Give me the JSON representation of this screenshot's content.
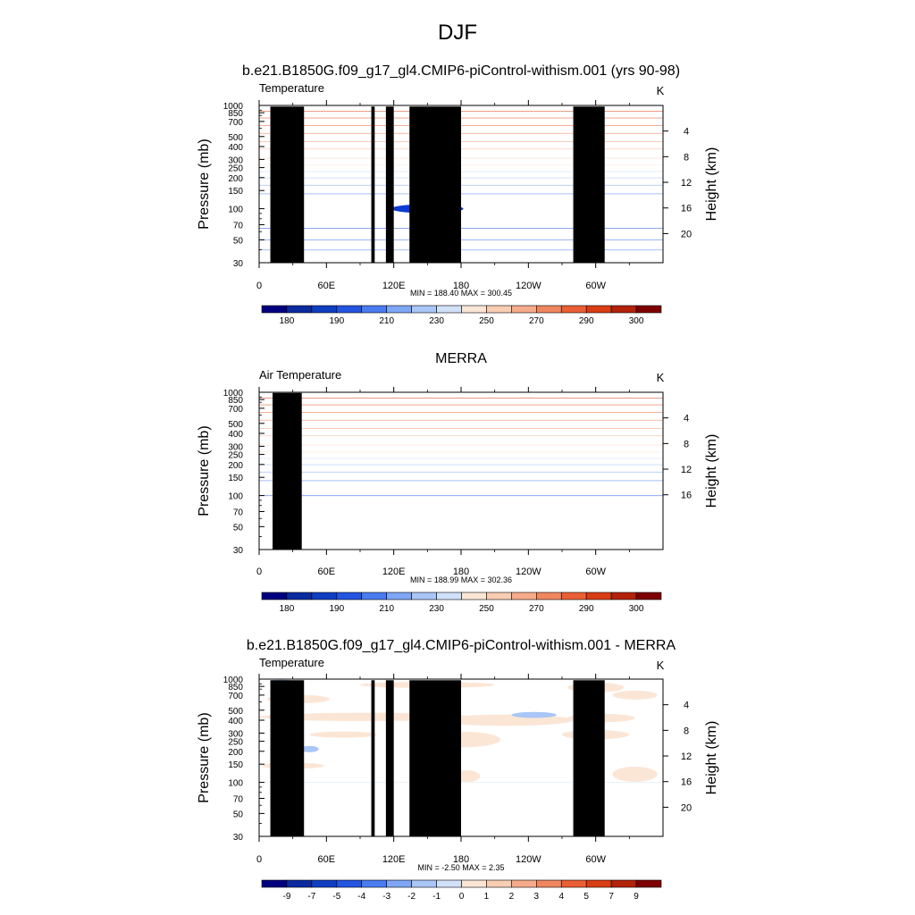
{
  "page": {
    "title": "DJF"
  },
  "panels": [
    {
      "title": "b.e21.B1850G.f09_g17_gl4.CMIP6-piControl-withism.001 (yrs 90-98)",
      "left_label": "Temperature",
      "right_label": "K",
      "ylabel_left": "Pressure (mb)",
      "ylabel_right": "Height (km)",
      "stats": "MIN = 188.40  MAX = 300.45",
      "bands": [
        {
          "p_top": 30,
          "p_bot": 40,
          "color": "#6ea2f5"
        },
        {
          "p_top": 40,
          "p_bot": 50,
          "color": "#4d82f0"
        },
        {
          "p_top": 50,
          "p_bot": 65,
          "color": "#3a6eec"
        },
        {
          "p_top": 65,
          "p_bot": 140,
          "color": "#1a50e0"
        },
        {
          "p_top": 140,
          "p_bot": 170,
          "color": "#4d82f0"
        },
        {
          "p_top": 170,
          "p_bot": 200,
          "color": "#7aa8f3"
        },
        {
          "p_top": 200,
          "p_bot": 230,
          "color": "#a3c4f5"
        },
        {
          "p_top": 230,
          "p_bot": 265,
          "color": "#c9dcf7"
        },
        {
          "p_top": 265,
          "p_bot": 310,
          "color": "#fbe5d6"
        },
        {
          "p_top": 310,
          "p_bot": 380,
          "color": "#fbd1b9"
        },
        {
          "p_top": 380,
          "p_bot": 450,
          "color": "#f9b697"
        },
        {
          "p_top": 450,
          "p_bot": 540,
          "color": "#f69a73"
        },
        {
          "p_top": 540,
          "p_bot": 640,
          "color": "#f37c4f"
        },
        {
          "p_top": 640,
          "p_bot": 760,
          "color": "#ee5f2d"
        },
        {
          "p_top": 760,
          "p_bot": 880,
          "color": "#e4471a"
        },
        {
          "p_top": 880,
          "p_bot": 1000,
          "color": "#d63b10"
        }
      ],
      "features": [
        {
          "type": "ellipse",
          "lon": 150,
          "p": 100,
          "rx_lon": 32,
          "p_half": 10,
          "color": "#0b3ad4"
        }
      ],
      "topo": [
        {
          "lon0": 10,
          "lon1": 40,
          "p_top": 975
        },
        {
          "lon0": 28,
          "lon1": 36,
          "p_top": 930
        },
        {
          "lon0": 100,
          "lon1": 103,
          "p_top": 975
        },
        {
          "lon0": 113,
          "lon1": 120,
          "p_top": 975
        },
        {
          "lon0": 134,
          "lon1": 180,
          "p_top": 975
        },
        {
          "lon0": 280,
          "lon1": 308,
          "p_top": 975
        }
      ],
      "mask": null,
      "colorbar": {
        "colors": [
          "#00007f",
          "#0a2a9e",
          "#0f3ec0",
          "#2255e0",
          "#4a7cf0",
          "#7ea6f5",
          "#a9c6f7",
          "#d0e1f8",
          "#fbe6d6",
          "#f9cdb2",
          "#f6ab8a",
          "#f08660",
          "#ea5f34",
          "#d93d13",
          "#b3220a",
          "#7f0000"
        ],
        "labels": [
          "180",
          "190",
          "210",
          "230",
          "250",
          "270",
          "290",
          "300"
        ]
      }
    },
    {
      "title": "MERRA",
      "left_label": "Air Temperature",
      "right_label": "K",
      "ylabel_left": "Pressure (mb)",
      "ylabel_right": "Height (km)",
      "stats": "MIN = 188.99  MAX = 302.36",
      "bands": [
        {
          "p_top": 30,
          "p_bot": 100,
          "color": "#ffffff"
        },
        {
          "p_top": 100,
          "p_bot": 140,
          "color": "#1a50e0"
        },
        {
          "p_top": 140,
          "p_bot": 170,
          "color": "#4d82f0"
        },
        {
          "p_top": 170,
          "p_bot": 200,
          "color": "#7aa8f3"
        },
        {
          "p_top": 200,
          "p_bot": 230,
          "color": "#a3c4f5"
        },
        {
          "p_top": 230,
          "p_bot": 265,
          "color": "#c9dcf7"
        },
        {
          "p_top": 265,
          "p_bot": 310,
          "color": "#fbe5d6"
        },
        {
          "p_top": 310,
          "p_bot": 380,
          "color": "#fbd1b9"
        },
        {
          "p_top": 380,
          "p_bot": 450,
          "color": "#f9b697"
        },
        {
          "p_top": 450,
          "p_bot": 540,
          "color": "#f69a73"
        },
        {
          "p_top": 540,
          "p_bot": 640,
          "color": "#f37c4f"
        },
        {
          "p_top": 640,
          "p_bot": 760,
          "color": "#ee5f2d"
        },
        {
          "p_top": 760,
          "p_bot": 880,
          "color": "#e4471a"
        },
        {
          "p_top": 880,
          "p_bot": 1000,
          "color": "#cf3510"
        }
      ],
      "features": [],
      "topo": [
        {
          "lon0": 12,
          "lon1": 38,
          "p_top": 985
        },
        {
          "lon0": 28,
          "lon1": 35,
          "p_top": 960
        }
      ],
      "mask": null,
      "colorbar": {
        "colors": [
          "#00007f",
          "#0a2a9e",
          "#0f3ec0",
          "#2255e0",
          "#4a7cf0",
          "#7ea6f5",
          "#a9c6f7",
          "#d0e1f8",
          "#fbe6d6",
          "#f9cdb2",
          "#f6ab8a",
          "#f08660",
          "#ea5f34",
          "#d93d13",
          "#b3220a",
          "#7f0000"
        ],
        "labels": [
          "180",
          "190",
          "210",
          "230",
          "250",
          "270",
          "290",
          "300"
        ]
      }
    },
    {
      "title": "b.e21.B1850G.f09_g17_gl4.CMIP6-piControl-withism.001 - MERRA",
      "left_label": "Temperature",
      "right_label": "K",
      "ylabel_left": "Pressure (mb)",
      "ylabel_right": "Height (km)",
      "stats": "MIN =  -2.50  MAX =   2.35",
      "bands": [
        {
          "p_top": 100,
          "p_bot": 1000,
          "color": "#d0e1f8"
        }
      ],
      "features": [
        {
          "type": "ellipse",
          "lon": 185,
          "p": 115,
          "rx_lon": 12,
          "p_half": 15,
          "color": "#fbe6d6"
        },
        {
          "type": "ellipse",
          "lon": 335,
          "p": 120,
          "rx_lon": 20,
          "p_half": 20,
          "color": "#fbe6d6"
        },
        {
          "type": "ellipse",
          "lon": 30,
          "p": 145,
          "rx_lon": 28,
          "p_half": 10,
          "color": "#fbe6d6"
        },
        {
          "type": "ellipse",
          "lon": 45,
          "p": 210,
          "rx_lon": 8,
          "p_half": 15,
          "color": "#a9c6f7"
        },
        {
          "type": "ellipse",
          "lon": 75,
          "p": 290,
          "rx_lon": 30,
          "p_half": 20,
          "color": "#fbe6d6"
        },
        {
          "type": "ellipse",
          "lon": 180,
          "p": 260,
          "rx_lon": 35,
          "p_half": 45,
          "color": "#fbe6d6"
        },
        {
          "type": "ellipse",
          "lon": 300,
          "p": 290,
          "rx_lon": 30,
          "p_half": 30,
          "color": "#fbe6d6"
        },
        {
          "type": "ellipse",
          "lon": 95,
          "p": 430,
          "rx_lon": 95,
          "p_half": 40,
          "color": "#fbe6d6"
        },
        {
          "type": "ellipse",
          "lon": 220,
          "p": 400,
          "rx_lon": 60,
          "p_half": 50,
          "color": "#fbe6d6"
        },
        {
          "type": "ellipse",
          "lon": 305,
          "p": 420,
          "rx_lon": 30,
          "p_half": 40,
          "color": "#fbe6d6"
        },
        {
          "type": "ellipse",
          "lon": 245,
          "p": 450,
          "rx_lon": 20,
          "p_half": 30,
          "color": "#a9c6f7"
        },
        {
          "type": "ellipse",
          "lon": 35,
          "p": 640,
          "rx_lon": 28,
          "p_half": 60,
          "color": "#fbe6d6"
        },
        {
          "type": "ellipse",
          "lon": 150,
          "p": 880,
          "rx_lon": 60,
          "p_half": 60,
          "color": "#fbe6d6"
        },
        {
          "type": "ellipse",
          "lon": 300,
          "p": 830,
          "rx_lon": 25,
          "p_half": 90,
          "color": "#fbe6d6"
        },
        {
          "type": "ellipse",
          "lon": 335,
          "p": 700,
          "rx_lon": 20,
          "p_half": 70,
          "color": "#fbe6d6"
        },
        {
          "type": "ellipse",
          "lon": 20,
          "p": 960,
          "rx_lon": 10,
          "p_half": 25,
          "color": "#a9c6f7"
        }
      ],
      "topo": [
        {
          "lon0": 10,
          "lon1": 40,
          "p_top": 975
        },
        {
          "lon0": 28,
          "lon1": 36,
          "p_top": 930
        },
        {
          "lon0": 100,
          "lon1": 103,
          "p_top": 975
        },
        {
          "lon0": 113,
          "lon1": 120,
          "p_top": 975
        },
        {
          "lon0": 134,
          "lon1": 180,
          "p_top": 975
        },
        {
          "lon0": 280,
          "lon1": 308,
          "p_top": 975
        }
      ],
      "mask": {
        "p_top": 30,
        "p_bot": 100,
        "color": "#000000"
      },
      "colorbar": {
        "colors": [
          "#00007f",
          "#0a2a9e",
          "#0f3ec0",
          "#2255e0",
          "#4a7cf0",
          "#7ea6f5",
          "#a9c6f7",
          "#d0e1f8",
          "#fbe6d6",
          "#f9cdb2",
          "#f6ab8a",
          "#f08660",
          "#ea5f34",
          "#d93d13",
          "#b3220a",
          "#7f0000"
        ],
        "labels": [
          "-9",
          "-7",
          "-5",
          "-4",
          "-3",
          "-2",
          "-1",
          "0",
          "1",
          "2",
          "3",
          "4",
          "5",
          "7",
          "9"
        ]
      }
    }
  ],
  "chart_data": [
    {
      "type": "heatmap",
      "title": "b.e21.B1850G.f09_g17_gl4.CMIP6-piControl-withism.001 (yrs 90-98)",
      "variable": "Temperature",
      "units": "K",
      "xlabel": "",
      "ylabel": "Pressure (mb)",
      "ylabel_right": "Height (km)",
      "x_ticks": [
        "0",
        "60E",
        "120E",
        "180",
        "120W",
        "60W"
      ],
      "y_ticks": [
        30,
        50,
        70,
        100,
        150,
        200,
        250,
        300,
        400,
        500,
        700,
        850,
        1000
      ],
      "y_right_ticks": [
        4,
        8,
        12,
        16,
        20
      ],
      "xlim": [
        0,
        360
      ],
      "ylim": [
        1000,
        30
      ],
      "y_scale": "log",
      "min": 188.4,
      "max": 300.45,
      "colorbar_labels": [
        180,
        190,
        210,
        230,
        250,
        270,
        290,
        300
      ]
    },
    {
      "type": "heatmap",
      "title": "MERRA",
      "variable": "Air Temperature",
      "units": "K",
      "xlabel": "",
      "ylabel": "Pressure (mb)",
      "ylabel_right": "Height (km)",
      "x_ticks": [
        "0",
        "60E",
        "120E",
        "180",
        "120W",
        "60W"
      ],
      "y_ticks": [
        30,
        50,
        70,
        100,
        150,
        200,
        250,
        300,
        400,
        500,
        700,
        850,
        1000
      ],
      "y_right_ticks": [
        4,
        8,
        12,
        16
      ],
      "xlim": [
        0,
        360
      ],
      "ylim": [
        1000,
        30
      ],
      "y_scale": "log",
      "min": 188.99,
      "max": 302.36,
      "colorbar_labels": [
        180,
        190,
        210,
        230,
        250,
        270,
        290,
        300
      ]
    },
    {
      "type": "heatmap",
      "title": "b.e21.B1850G.f09_g17_gl4.CMIP6-piControl-withism.001 - MERRA",
      "variable": "Temperature",
      "units": "K",
      "xlabel": "",
      "ylabel": "Pressure (mb)",
      "ylabel_right": "Height (km)",
      "x_ticks": [
        "0",
        "60E",
        "120E",
        "180",
        "120W",
        "60W"
      ],
      "y_ticks": [
        30,
        50,
        70,
        100,
        150,
        200,
        250,
        300,
        400,
        500,
        700,
        850,
        1000
      ],
      "y_right_ticks": [
        4,
        8,
        12,
        16,
        20
      ],
      "xlim": [
        0,
        360
      ],
      "ylim": [
        1000,
        30
      ],
      "y_scale": "log",
      "min": -2.5,
      "max": 2.35,
      "colorbar_labels": [
        -9,
        -7,
        -5,
        -4,
        -3,
        -2,
        -1,
        0,
        1,
        2,
        3,
        4,
        5,
        7,
        9
      ]
    }
  ]
}
